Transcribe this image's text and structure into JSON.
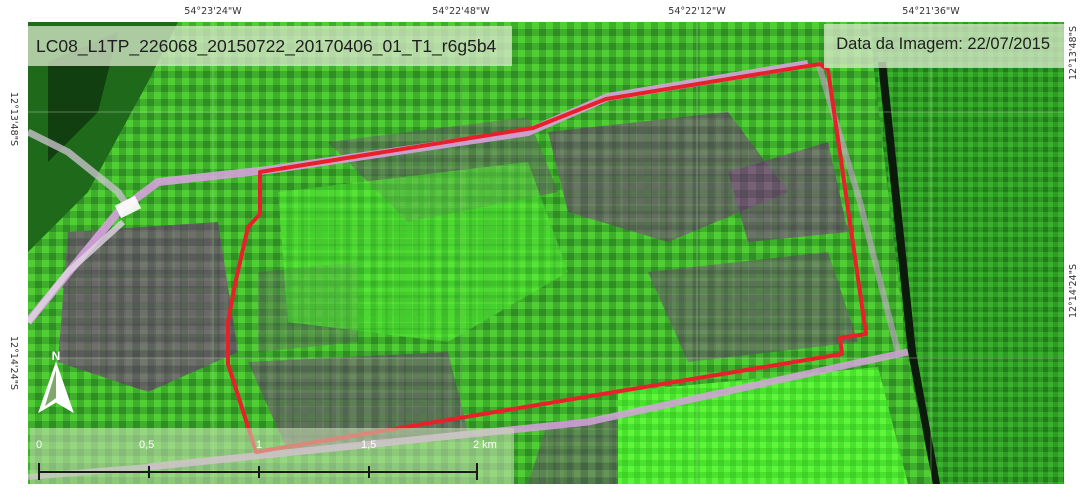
{
  "header": {
    "scene_id": "LC08_L1TP_226068_20150722_20170406_01_T1_r6g5b4",
    "image_date": "Data da Imagem: 22/07/2015"
  },
  "graticule": {
    "longitudes": [
      "54°23'24\"W",
      "54°22'48\"W",
      "54°22'12\"W",
      "54°21'36\"W"
    ],
    "latitudes": [
      "12°13'48\"S",
      "12°14'24\"S"
    ]
  },
  "north_arrow": {
    "label": "N",
    "icon": "north-arrow-icon"
  },
  "scale_bar": {
    "ticks": [
      "0",
      "0,5",
      "1",
      "1,5",
      "2 km"
    ]
  },
  "colors": {
    "boundary": "#e8202a",
    "road": "#d9a6e0",
    "vegetation_bright": "#4cf12f",
    "vegetation_dark": "#2f7a1e",
    "soil_purple": "#6a3d6f"
  }
}
